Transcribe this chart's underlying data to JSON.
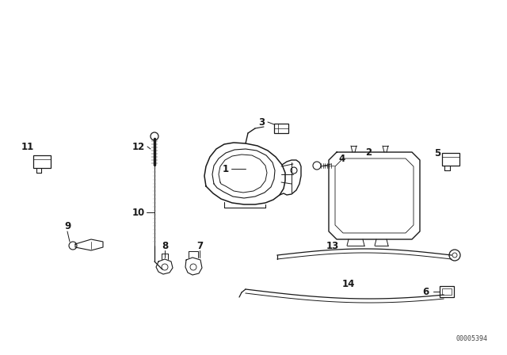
{
  "bg_color": "#ffffff",
  "line_color": "#1a1a1a",
  "part_number": "00005394",
  "lw": 0.9
}
